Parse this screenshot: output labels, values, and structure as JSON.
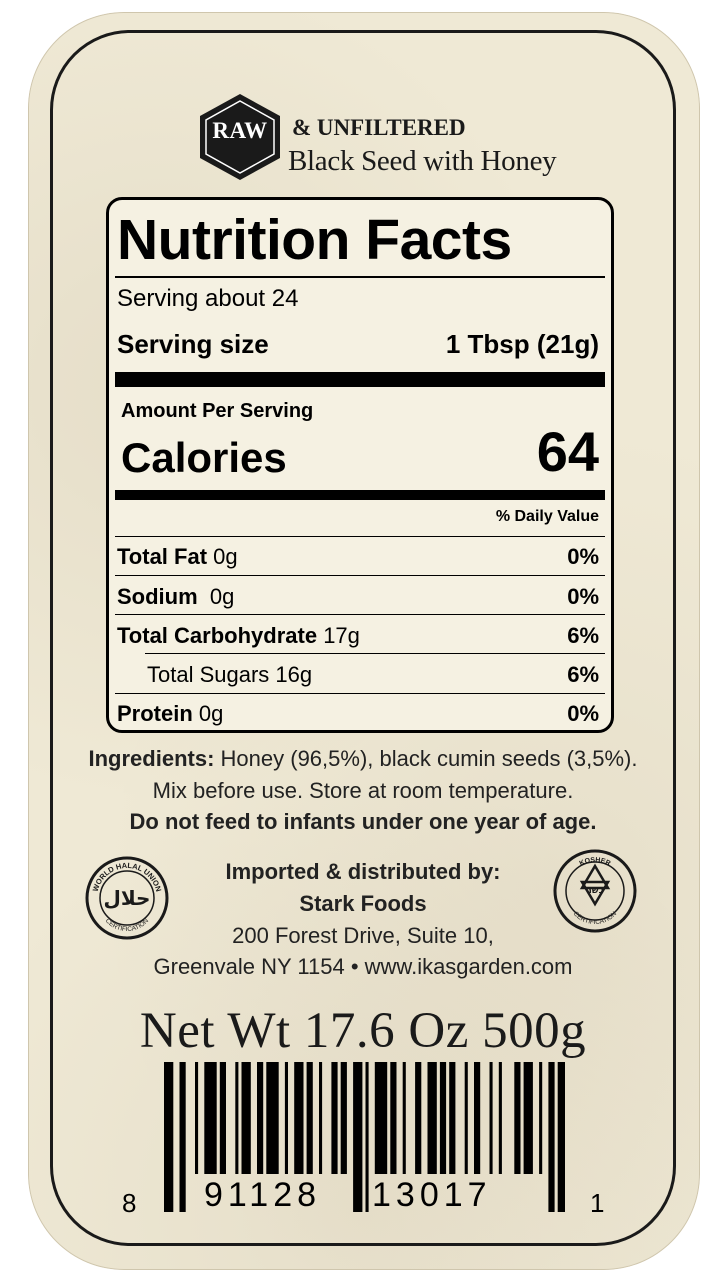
{
  "header": {
    "badge": "RAW",
    "line1": "& UNFILTERED",
    "line2": "Black Seed with Honey"
  },
  "nutrition": {
    "title": "Nutrition Facts",
    "servings": "Serving about 24",
    "serving_size_label": "Serving size",
    "serving_size_value": "1 Tbsp (21g)",
    "amount_per_serving": "Amount Per Serving",
    "calories_label": "Calories",
    "calories_value": "64",
    "dv_header": "% Daily Value",
    "rows": [
      {
        "name": "Total Fat",
        "amount": "0g",
        "dv": "0%"
      },
      {
        "name": "Sodium",
        "amount": "0g",
        "dv": "0%"
      },
      {
        "name": "Total Carbohydrate",
        "amount": "17g",
        "dv": "6%"
      },
      {
        "name": "Total Sugars",
        "amount": "16g",
        "dv": "6%"
      },
      {
        "name": "Protein",
        "amount": "0g",
        "dv": "0%"
      }
    ]
  },
  "ingredients": {
    "label": "Ingredients:",
    "text": "Honey (96,5%), black cumin seeds (3,5%).",
    "instructions": "Mix before use. Store at room temperature.",
    "warning": "Do not feed to infants under one year of age."
  },
  "distributor": {
    "heading": "Imported & distributed by:",
    "name": "Stark Foods",
    "address1": "200 Forest Drive, Suite 10,",
    "address2": "Greenvale NY 1154 • www.ikasgarden.com"
  },
  "seals": {
    "halal_ring": "WORLD HALAL UNION",
    "halal_glyph": "حلال",
    "halal_bottom": "CERTIFICATION",
    "kosher_ring": "KOSHER",
    "kosher_glyph": "כשר",
    "kosher_bottom": "CERTIFICATION"
  },
  "net_weight": "Net Wt 17.6 Oz 500g",
  "barcode": {
    "first": "8",
    "left_group": "91128",
    "right_group": "13017",
    "last": "1"
  }
}
